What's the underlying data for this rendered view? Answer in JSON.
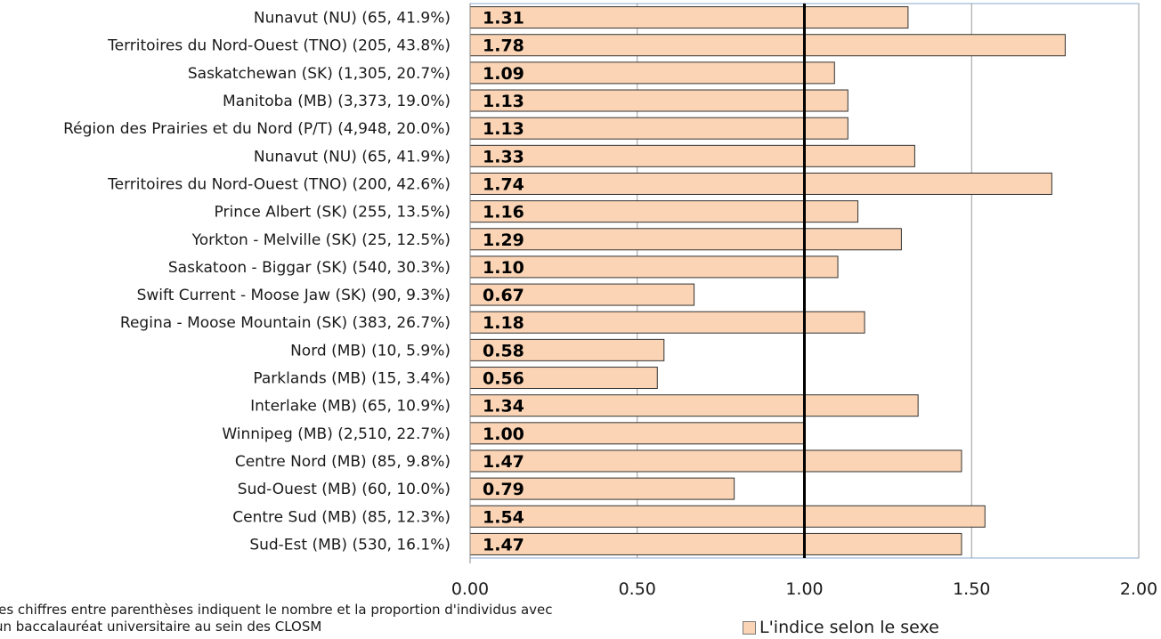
{
  "chart_data": {
    "type": "bar",
    "orientation": "horizontal",
    "categories": [
      "Nunavut (NU) (65, 41.9%)",
      "Territoires du Nord-Ouest (TNO) (205, 43.8%)",
      "Saskatchewan (SK) (1,305, 20.7%)",
      "Manitoba (MB) (3,373, 19.0%)",
      "Région des Prairies et du Nord (P/T) (4,948, 20.0%)",
      "Nunavut (NU) (65, 41.9%)",
      "Territoires du Nord-Ouest (TNO) (200, 42.6%)",
      "Prince Albert (SK) (255, 13.5%)",
      "Yorkton - Melville (SK) (25, 12.5%)",
      "Saskatoon - Biggar (SK) (540, 30.3%)",
      "Swift Current - Moose Jaw (SK) (90, 9.3%)",
      "Regina - Moose Mountain (SK) (383, 26.7%)",
      "Nord (MB) (10, 5.9%)",
      "Parklands (MB) (15, 3.4%)",
      "Interlake (MB) (65, 10.9%)",
      "Winnipeg (MB) (2,510, 22.7%)",
      "Centre Nord (MB) (85, 9.8%)",
      "Sud-Ouest (MB) (60, 10.0%)",
      "Centre Sud (MB) (85, 12.3%)",
      "Sud-Est (MB) (530, 16.1%)"
    ],
    "values": [
      1.31,
      1.78,
      1.09,
      1.13,
      1.13,
      1.33,
      1.74,
      1.16,
      1.29,
      1.1,
      0.67,
      1.18,
      0.58,
      0.56,
      1.34,
      1.0,
      1.47,
      0.79,
      1.54,
      1.47
    ],
    "value_labels": [
      "1.31",
      "1.78",
      "1.09",
      "1.13",
      "1.13",
      "1.33",
      "1.74",
      "1.16",
      "1.29",
      "1.10",
      "0.67",
      "1.18",
      "0.58",
      "0.56",
      "1.34",
      "1.00",
      "1.47",
      "0.79",
      "1.54",
      "1.47"
    ],
    "xlim": [
      0,
      2
    ],
    "xticks": [
      0,
      0.5,
      1,
      1.5,
      2
    ],
    "xtick_labels": [
      "0.00",
      "0.50",
      "1.00",
      "1.50",
      "2.00"
    ],
    "reference_line": 1.0,
    "grid": true,
    "legend_position": "bottom-right",
    "series_name": "L'indice selon le sexe",
    "bar_color": "#FAD4B4",
    "bar_border_color": "#333333",
    "reference_line_color": "#000000",
    "footnote": [
      "Les chiffres entre parenthèses indiquent le nombre et la proportion d'individus avec",
      "un baccalauréat universitaire au sein des CLOSM"
    ]
  }
}
